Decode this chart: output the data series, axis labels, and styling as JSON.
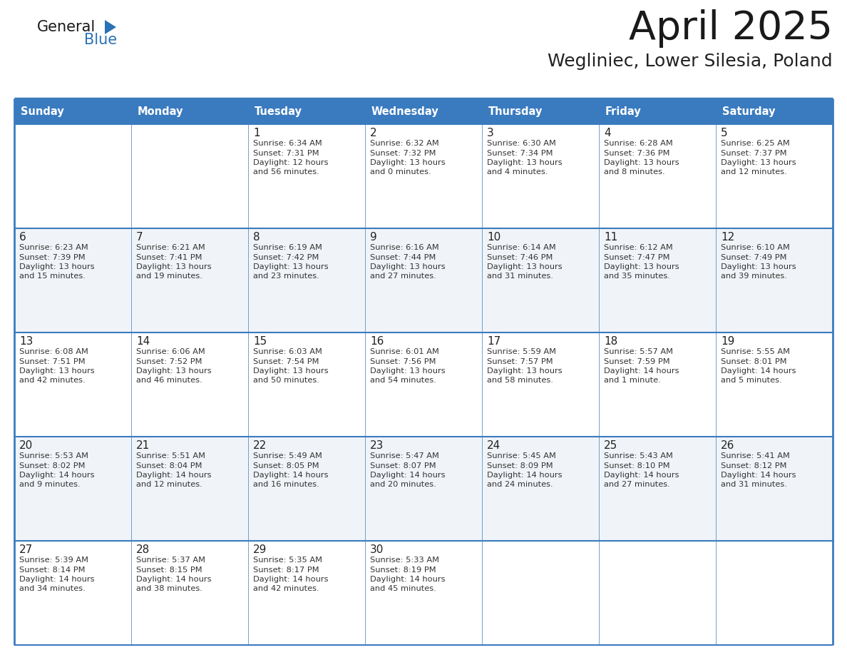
{
  "title": "April 2025",
  "subtitle": "Wegliniec, Lower Silesia, Poland",
  "header_bg_color": "#3a7bbf",
  "header_text_color": "#ffffff",
  "weekdays": [
    "Sunday",
    "Monday",
    "Tuesday",
    "Wednesday",
    "Thursday",
    "Friday",
    "Saturday"
  ],
  "bg_color": "#ffffff",
  "row_alt_color": "#f0f4f8",
  "border_color": "#3a7bbf",
  "title_color": "#1a1a1a",
  "subtitle_color": "#222222",
  "day_number_color": "#222222",
  "cell_text_color": "#333333",
  "logo_text_color": "#1a1a1a",
  "logo_blue_color": "#2a72b5",
  "calendar": [
    [
      {
        "day": "",
        "sunrise": "",
        "sunset": "",
        "daylight": ""
      },
      {
        "day": "",
        "sunrise": "",
        "sunset": "",
        "daylight": ""
      },
      {
        "day": "1",
        "sunrise": "Sunrise: 6:34 AM",
        "sunset": "Sunset: 7:31 PM",
        "daylight": "Daylight: 12 hours and 56 minutes."
      },
      {
        "day": "2",
        "sunrise": "Sunrise: 6:32 AM",
        "sunset": "Sunset: 7:32 PM",
        "daylight": "Daylight: 13 hours and 0 minutes."
      },
      {
        "day": "3",
        "sunrise": "Sunrise: 6:30 AM",
        "sunset": "Sunset: 7:34 PM",
        "daylight": "Daylight: 13 hours and 4 minutes."
      },
      {
        "day": "4",
        "sunrise": "Sunrise: 6:28 AM",
        "sunset": "Sunset: 7:36 PM",
        "daylight": "Daylight: 13 hours and 8 minutes."
      },
      {
        "day": "5",
        "sunrise": "Sunrise: 6:25 AM",
        "sunset": "Sunset: 7:37 PM",
        "daylight": "Daylight: 13 hours and 12 minutes."
      }
    ],
    [
      {
        "day": "6",
        "sunrise": "Sunrise: 6:23 AM",
        "sunset": "Sunset: 7:39 PM",
        "daylight": "Daylight: 13 hours and 15 minutes."
      },
      {
        "day": "7",
        "sunrise": "Sunrise: 6:21 AM",
        "sunset": "Sunset: 7:41 PM",
        "daylight": "Daylight: 13 hours and 19 minutes."
      },
      {
        "day": "8",
        "sunrise": "Sunrise: 6:19 AM",
        "sunset": "Sunset: 7:42 PM",
        "daylight": "Daylight: 13 hours and 23 minutes."
      },
      {
        "day": "9",
        "sunrise": "Sunrise: 6:16 AM",
        "sunset": "Sunset: 7:44 PM",
        "daylight": "Daylight: 13 hours and 27 minutes."
      },
      {
        "day": "10",
        "sunrise": "Sunrise: 6:14 AM",
        "sunset": "Sunset: 7:46 PM",
        "daylight": "Daylight: 13 hours and 31 minutes."
      },
      {
        "day": "11",
        "sunrise": "Sunrise: 6:12 AM",
        "sunset": "Sunset: 7:47 PM",
        "daylight": "Daylight: 13 hours and 35 minutes."
      },
      {
        "day": "12",
        "sunrise": "Sunrise: 6:10 AM",
        "sunset": "Sunset: 7:49 PM",
        "daylight": "Daylight: 13 hours and 39 minutes."
      }
    ],
    [
      {
        "day": "13",
        "sunrise": "Sunrise: 6:08 AM",
        "sunset": "Sunset: 7:51 PM",
        "daylight": "Daylight: 13 hours and 42 minutes."
      },
      {
        "day": "14",
        "sunrise": "Sunrise: 6:06 AM",
        "sunset": "Sunset: 7:52 PM",
        "daylight": "Daylight: 13 hours and 46 minutes."
      },
      {
        "day": "15",
        "sunrise": "Sunrise: 6:03 AM",
        "sunset": "Sunset: 7:54 PM",
        "daylight": "Daylight: 13 hours and 50 minutes."
      },
      {
        "day": "16",
        "sunrise": "Sunrise: 6:01 AM",
        "sunset": "Sunset: 7:56 PM",
        "daylight": "Daylight: 13 hours and 54 minutes."
      },
      {
        "day": "17",
        "sunrise": "Sunrise: 5:59 AM",
        "sunset": "Sunset: 7:57 PM",
        "daylight": "Daylight: 13 hours and 58 minutes."
      },
      {
        "day": "18",
        "sunrise": "Sunrise: 5:57 AM",
        "sunset": "Sunset: 7:59 PM",
        "daylight": "Daylight: 14 hours and 1 minute."
      },
      {
        "day": "19",
        "sunrise": "Sunrise: 5:55 AM",
        "sunset": "Sunset: 8:01 PM",
        "daylight": "Daylight: 14 hours and 5 minutes."
      }
    ],
    [
      {
        "day": "20",
        "sunrise": "Sunrise: 5:53 AM",
        "sunset": "Sunset: 8:02 PM",
        "daylight": "Daylight: 14 hours and 9 minutes."
      },
      {
        "day": "21",
        "sunrise": "Sunrise: 5:51 AM",
        "sunset": "Sunset: 8:04 PM",
        "daylight": "Daylight: 14 hours and 12 minutes."
      },
      {
        "day": "22",
        "sunrise": "Sunrise: 5:49 AM",
        "sunset": "Sunset: 8:05 PM",
        "daylight": "Daylight: 14 hours and 16 minutes."
      },
      {
        "day": "23",
        "sunrise": "Sunrise: 5:47 AM",
        "sunset": "Sunset: 8:07 PM",
        "daylight": "Daylight: 14 hours and 20 minutes."
      },
      {
        "day": "24",
        "sunrise": "Sunrise: 5:45 AM",
        "sunset": "Sunset: 8:09 PM",
        "daylight": "Daylight: 14 hours and 24 minutes."
      },
      {
        "day": "25",
        "sunrise": "Sunrise: 5:43 AM",
        "sunset": "Sunset: 8:10 PM",
        "daylight": "Daylight: 14 hours and 27 minutes."
      },
      {
        "day": "26",
        "sunrise": "Sunrise: 5:41 AM",
        "sunset": "Sunset: 8:12 PM",
        "daylight": "Daylight: 14 hours and 31 minutes."
      }
    ],
    [
      {
        "day": "27",
        "sunrise": "Sunrise: 5:39 AM",
        "sunset": "Sunset: 8:14 PM",
        "daylight": "Daylight: 14 hours and 34 minutes."
      },
      {
        "day": "28",
        "sunrise": "Sunrise: 5:37 AM",
        "sunset": "Sunset: 8:15 PM",
        "daylight": "Daylight: 14 hours and 38 minutes."
      },
      {
        "day": "29",
        "sunrise": "Sunrise: 5:35 AM",
        "sunset": "Sunset: 8:17 PM",
        "daylight": "Daylight: 14 hours and 42 minutes."
      },
      {
        "day": "30",
        "sunrise": "Sunrise: 5:33 AM",
        "sunset": "Sunset: 8:19 PM",
        "daylight": "Daylight: 14 hours and 45 minutes."
      },
      {
        "day": "",
        "sunrise": "",
        "sunset": "",
        "daylight": ""
      },
      {
        "day": "",
        "sunrise": "",
        "sunset": "",
        "daylight": ""
      },
      {
        "day": "",
        "sunrise": "",
        "sunset": "",
        "daylight": ""
      }
    ]
  ]
}
